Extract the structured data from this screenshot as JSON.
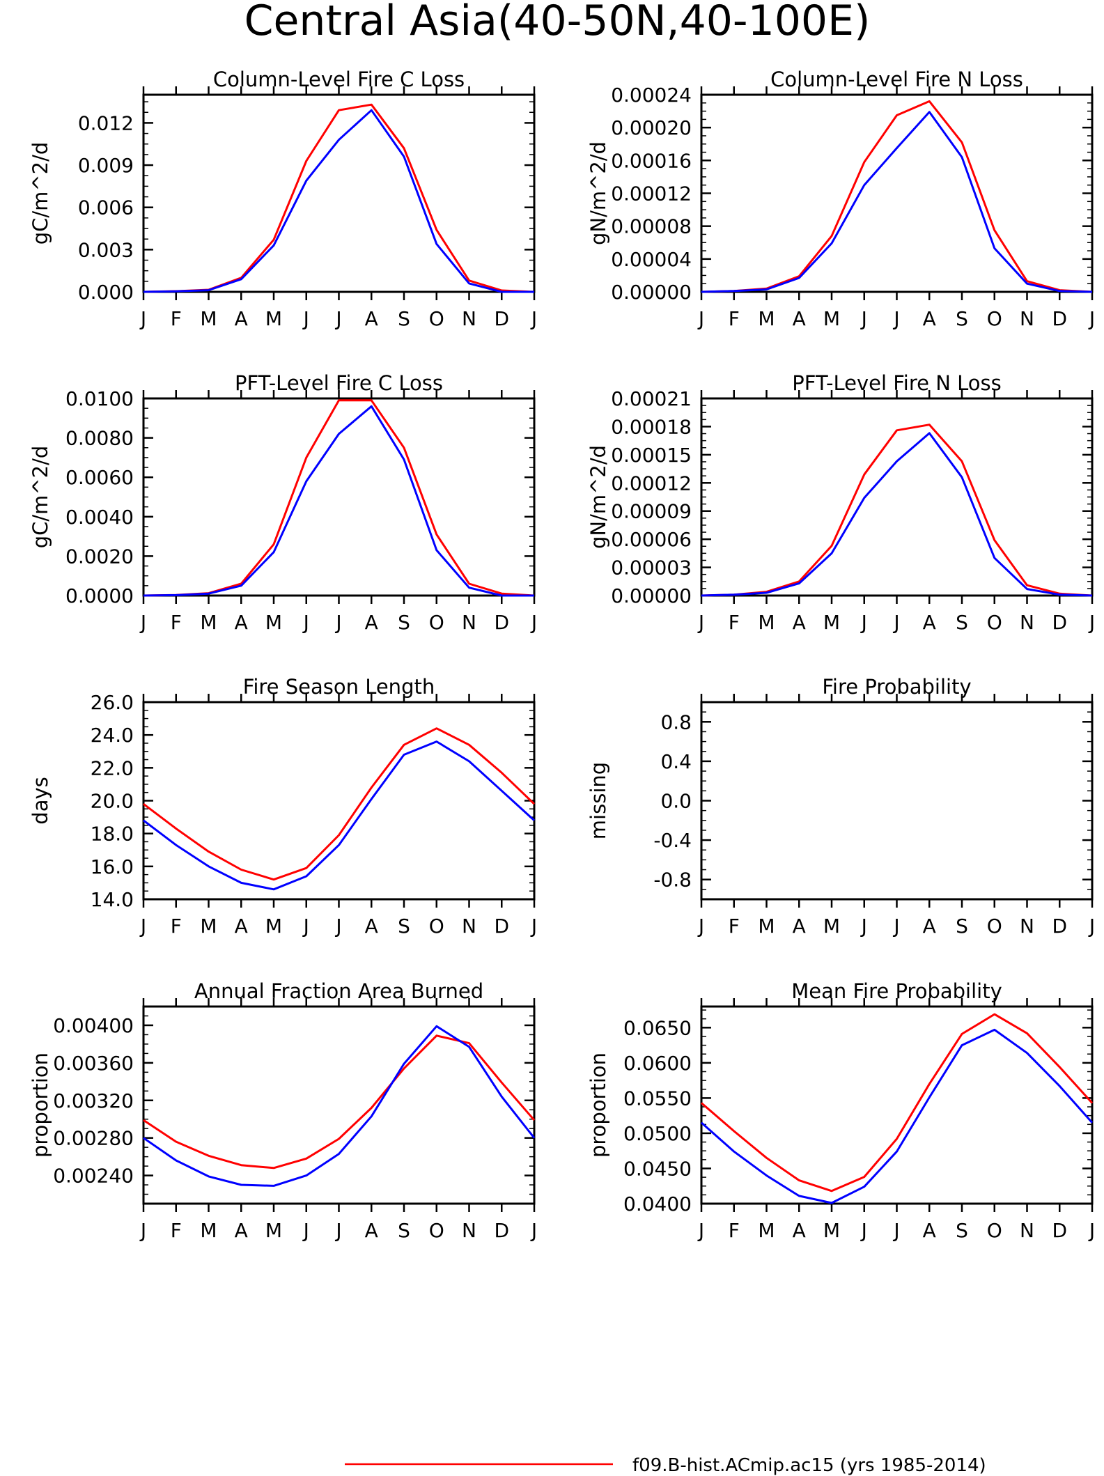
{
  "figure": {
    "title": "Central Asia(40-50N,40-100E)",
    "months": [
      "J",
      "F",
      "M",
      "A",
      "M",
      "J",
      "J",
      "A",
      "S",
      "O",
      "N",
      "D",
      "J"
    ],
    "legend": [
      {
        "label": "f09.B-hist.ACmip.ac15 (yrs 1985-2014)",
        "color": "#ff0000"
      }
    ]
  },
  "chart_data": [
    {
      "type": "line",
      "title": "Column-Level Fire C Loss",
      "ylabel": "gC/m^2/d",
      "x": [
        "J",
        "F",
        "M",
        "A",
        "M",
        "J",
        "J",
        "A",
        "S",
        "O",
        "N",
        "D",
        "J"
      ],
      "ylim": [
        0,
        0.014
      ],
      "yticks": [
        "0.000",
        "0.003",
        "0.006",
        "0.009",
        "0.012"
      ],
      "series": [
        {
          "color": "#ff0000",
          "values": [
            0.0,
            5e-05,
            0.00015,
            0.001,
            0.0037,
            0.0093,
            0.0129,
            0.0133,
            0.0102,
            0.0044,
            0.0008,
            0.0001,
            0.0
          ]
        },
        {
          "color": "#0000ff",
          "values": [
            0.0,
            4e-05,
            0.00012,
            0.0009,
            0.0033,
            0.0079,
            0.0108,
            0.0129,
            0.0096,
            0.0034,
            0.0006,
            0.0,
            0.0
          ]
        }
      ]
    },
    {
      "type": "line",
      "title": "Column-Level Fire N Loss",
      "ylabel": "gN/m^2/d",
      "x": [
        "J",
        "F",
        "M",
        "A",
        "M",
        "J",
        "J",
        "A",
        "S",
        "O",
        "N",
        "D",
        "J"
      ],
      "ylim": [
        0,
        0.00024
      ],
      "yticks": [
        "0.00000",
        "0.00004",
        "0.00008",
        "0.00012",
        "0.00016",
        "0.00020",
        "0.00024"
      ],
      "series": [
        {
          "color": "#ff0000",
          "values": [
            0.0,
            1e-06,
            4e-06,
            1.9e-05,
            6.8e-05,
            0.000158,
            0.000215,
            0.000232,
            0.000182,
            7.5e-05,
            1.3e-05,
            2e-06,
            0.0
          ]
        },
        {
          "color": "#0000ff",
          "values": [
            0.0,
            1e-06,
            3e-06,
            1.7e-05,
            5.9e-05,
            0.00013,
            0.000175,
            0.000219,
            0.000164,
            5.3e-05,
            1e-05,
            1e-06,
            0.0
          ]
        }
      ]
    },
    {
      "type": "line",
      "title": "PFT-Level Fire C Loss",
      "ylabel": "gC/m^2/d",
      "x": [
        "J",
        "F",
        "M",
        "A",
        "M",
        "J",
        "J",
        "A",
        "S",
        "O",
        "N",
        "D",
        "J"
      ],
      "ylim": [
        0,
        0.01
      ],
      "yticks": [
        "0.0000",
        "0.0020",
        "0.0040",
        "0.0060",
        "0.0080",
        "0.0100"
      ],
      "series": [
        {
          "color": "#ff0000",
          "values": [
            0.0,
            3e-05,
            0.00012,
            0.0006,
            0.0026,
            0.007,
            0.0099,
            0.0099,
            0.0075,
            0.0031,
            0.0006,
            0.0001,
            0.0
          ]
        },
        {
          "color": "#0000ff",
          "values": [
            0.0,
            2e-05,
            0.0001,
            0.0005,
            0.0022,
            0.0058,
            0.0082,
            0.0096,
            0.0069,
            0.0023,
            0.0004,
            0.0,
            0.0
          ]
        }
      ]
    },
    {
      "type": "line",
      "title": "PFT-Level Fire N Loss",
      "ylabel": "gN/m^2/d",
      "x": [
        "J",
        "F",
        "M",
        "A",
        "M",
        "J",
        "J",
        "A",
        "S",
        "O",
        "N",
        "D",
        "J"
      ],
      "ylim": [
        0,
        0.00021
      ],
      "yticks": [
        "0.00000",
        "0.00003",
        "0.00006",
        "0.00009",
        "0.00012",
        "0.00015",
        "0.00018",
        "0.00021"
      ],
      "series": [
        {
          "color": "#ff0000",
          "values": [
            0.0,
            1e-06,
            4e-06,
            1.5e-05,
            5.3e-05,
            0.000129,
            0.000176,
            0.000182,
            0.000143,
            5.9e-05,
            1.1e-05,
            2e-06,
            0.0
          ]
        },
        {
          "color": "#0000ff",
          "values": [
            0.0,
            1e-06,
            3e-06,
            1.3e-05,
            4.5e-05,
            0.000104,
            0.000143,
            0.000173,
            0.000126,
            4e-05,
            7e-06,
            1e-06,
            0.0
          ]
        }
      ]
    },
    {
      "type": "line",
      "title": "Fire Season Length",
      "ylabel": "days",
      "x": [
        "J",
        "F",
        "M",
        "A",
        "M",
        "J",
        "J",
        "A",
        "S",
        "O",
        "N",
        "D",
        "J"
      ],
      "ylim": [
        14,
        26
      ],
      "yticks": [
        "14.0",
        "16.0",
        "18.0",
        "20.0",
        "22.0",
        "24.0",
        "26.0"
      ],
      "series": [
        {
          "color": "#ff0000",
          "values": [
            19.8,
            18.3,
            16.9,
            15.8,
            15.2,
            15.9,
            17.9,
            20.8,
            23.4,
            24.4,
            23.4,
            21.7,
            19.8
          ]
        },
        {
          "color": "#0000ff",
          "values": [
            18.8,
            17.3,
            16.0,
            15.0,
            14.6,
            15.4,
            17.3,
            20.1,
            22.8,
            23.6,
            22.4,
            20.6,
            18.8
          ]
        }
      ]
    },
    {
      "type": "line",
      "title": "Fire Probability",
      "ylabel": "missing",
      "x": [
        "J",
        "F",
        "M",
        "A",
        "M",
        "J",
        "J",
        "A",
        "S",
        "O",
        "N",
        "D",
        "J"
      ],
      "ylim": [
        -1,
        1
      ],
      "yticks": [
        "-0.8",
        "-0.4",
        "0.0",
        "0.4",
        "0.8"
      ],
      "series": []
    },
    {
      "type": "line",
      "title": "Annual Fraction Area Burned",
      "ylabel": "proportion",
      "x": [
        "J",
        "F",
        "M",
        "A",
        "M",
        "J",
        "J",
        "A",
        "S",
        "O",
        "N",
        "D",
        "J"
      ],
      "ylim": [
        0.0021,
        0.0042
      ],
      "yticks": [
        "0.00240",
        "0.00280",
        "0.00320",
        "0.00360",
        "0.00400"
      ],
      "series": [
        {
          "color": "#ff0000",
          "values": [
            0.00299,
            0.00276,
            0.00261,
            0.00251,
            0.00248,
            0.00258,
            0.00279,
            0.00312,
            0.00354,
            0.00389,
            0.00381,
            0.00339,
            0.00299
          ]
        },
        {
          "color": "#0000ff",
          "values": [
            0.0028,
            0.00256,
            0.00239,
            0.0023,
            0.00229,
            0.0024,
            0.00263,
            0.00303,
            0.00359,
            0.00399,
            0.00377,
            0.00324,
            0.0028
          ]
        }
      ]
    },
    {
      "type": "line",
      "title": "Mean Fire Probability",
      "ylabel": "proportion",
      "x": [
        "J",
        "F",
        "M",
        "A",
        "M",
        "J",
        "J",
        "A",
        "S",
        "O",
        "N",
        "D",
        "J"
      ],
      "ylim": [
        0.04,
        0.068
      ],
      "yticks": [
        "0.0400",
        "0.0450",
        "0.0500",
        "0.0550",
        "0.0600",
        "0.0650"
      ],
      "series": [
        {
          "color": "#ff0000",
          "values": [
            0.0543,
            0.0503,
            0.0465,
            0.0433,
            0.0418,
            0.0438,
            0.0492,
            0.057,
            0.0641,
            0.0669,
            0.0642,
            0.0594,
            0.0543
          ]
        },
        {
          "color": "#0000ff",
          "values": [
            0.0515,
            0.0474,
            0.044,
            0.0411,
            0.0401,
            0.0424,
            0.0474,
            0.0551,
            0.0625,
            0.0647,
            0.0614,
            0.0567,
            0.0515
          ]
        }
      ]
    }
  ]
}
